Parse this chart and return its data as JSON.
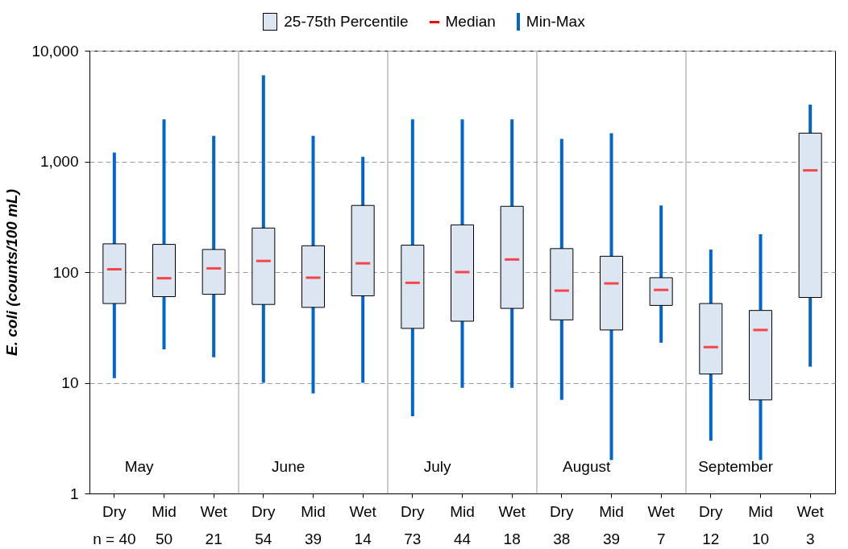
{
  "chart_data": {
    "type": "box",
    "ylabel": "E. coli (counts/100 mL)",
    "categories": [
      "Dry\nn = 40",
      "Mid\n50",
      "Wet\n21",
      "Dry\n54",
      "Mid\n39",
      "Wet\n14",
      "Dry\n73",
      "Mid\n44",
      "Wet\n18",
      "Dry\n38",
      "Mid\n39",
      "Wet\n7",
      "Dry\n12",
      "Mid\n10",
      "Wet\n3"
    ],
    "series": [
      {
        "name": "25-75th Percentile",
        "color": "#dce6f2",
        "boxes": [
          {
            "low": 11,
            "q1": 52,
            "median": 106,
            "q3": 180,
            "high": 1200
          },
          {
            "low": 20,
            "q1": 60,
            "median": 88,
            "q3": 178,
            "high": 2400
          },
          {
            "low": 17,
            "q1": 63,
            "median": 108,
            "q3": 160,
            "high": 1700
          },
          {
            "low": 10,
            "q1": 51,
            "median": 126,
            "q3": 250,
            "high": 6000
          },
          {
            "low": 8,
            "q1": 48,
            "median": 89,
            "q3": 173,
            "high": 1700
          },
          {
            "low": 10,
            "q1": 61,
            "median": 120,
            "q3": 400,
            "high": 1100
          },
          {
            "low": 5,
            "q1": 31,
            "median": 80,
            "q3": 175,
            "high": 2400
          },
          {
            "low": 9,
            "q1": 36,
            "median": 100,
            "q3": 267,
            "high": 2400
          },
          {
            "low": 9,
            "q1": 47,
            "median": 130,
            "q3": 393,
            "high": 2400
          },
          {
            "low": 7,
            "q1": 37,
            "median": 68,
            "q3": 163,
            "high": 1600
          },
          {
            "low": 2,
            "q1": 30,
            "median": 79,
            "q3": 139,
            "high": 1800
          },
          {
            "low": 23,
            "q1": 50,
            "median": 69,
            "q3": 89,
            "high": 400
          },
          {
            "low": 3,
            "q1": 12,
            "median": 21,
            "q3": 52,
            "high": 160
          },
          {
            "low": 2,
            "q1": 7,
            "median": 30,
            "q3": 45,
            "high": 220
          },
          {
            "low": 14,
            "q1": 59,
            "median": 830,
            "q3": 1800,
            "high": 3250
          }
        ]
      }
    ],
    "colors": [
      "#ff0000",
      "#0066cc"
    ],
    "annotations": [
      "Median",
      "Min-Max",
      "May",
      "June",
      "July",
      "August",
      "September"
    ],
    "log": true,
    "ylim": [
      1,
      10000
    ],
    "yticks": [
      1,
      10,
      100,
      {
        "value": 1000,
        "label": "1,000"
      },
      {
        "value": 10000,
        "label": "10,000"
      }
    ],
    "grid": "y",
    "legend": "top"
  }
}
